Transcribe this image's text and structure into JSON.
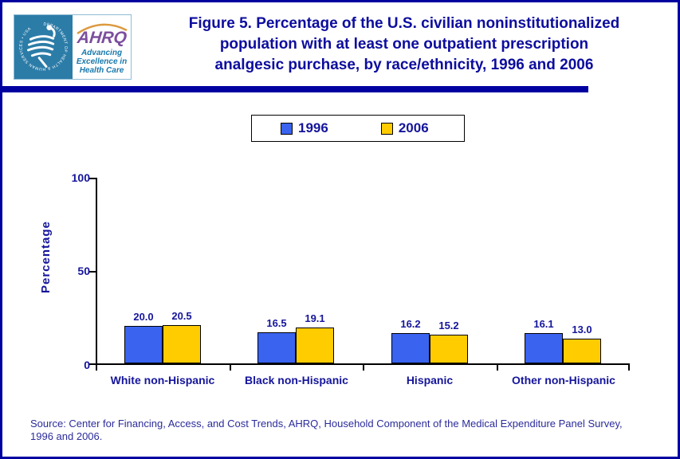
{
  "header": {
    "title_lines": [
      "Figure 5. Percentage of the U.S. civilian noninstitutionalized",
      "population with at least one outpatient prescription",
      "analgesic purchase, by race/ethnicity, 1996 and 2006"
    ],
    "logo": {
      "wordmark": "AHRQ",
      "tagline_line1": "Advancing",
      "tagline_line2": "Excellence in",
      "tagline_line3": "Health Care",
      "seal_text": "DEPARTMENT OF HEALTH & HUMAN SERVICES • USA"
    }
  },
  "chart_data": {
    "type": "bar",
    "title": "Figure 5. Percentage of the U.S. civilian noninstitutionalized population with at least one outpatient prescription analgesic purchase, by race/ethnicity, 1996 and 2006",
    "categories": [
      "White non-Hispanic",
      "Black non-Hispanic",
      "Hispanic",
      "Other non-Hispanic"
    ],
    "series": [
      {
        "name": "1996",
        "color": "#3A63F0",
        "values": [
          20.0,
          16.5,
          16.2,
          16.1
        ]
      },
      {
        "name": "2006",
        "color": "#FFCC00",
        "values": [
          20.5,
          19.1,
          15.2,
          13.0
        ]
      }
    ],
    "xlabel": "",
    "ylabel": "Percentage",
    "ylim": [
      0,
      100
    ],
    "yticks": [
      0,
      50,
      100
    ],
    "grid": false,
    "legend_position": "top-center",
    "value_labels": true
  },
  "footer": {
    "source_line1": "Source: Center for Financing, Access, and Cost Trends, AHRQ, Household Component of the Medical Expenditure Panel Survey,",
    "source_line2": "1996 and 2006."
  },
  "colors": {
    "navy_text": "#15159B",
    "title_navy": "#0D0D9E",
    "banner_navy": "#0000A0",
    "bar_1996": "#3A63F0",
    "bar_2006": "#FFCC00",
    "seal_teal": "#2C7CA8",
    "ahrq_purple": "#7C4E9E",
    "arc_orange": "#DC9A3F",
    "axis_black": "#000000"
  }
}
